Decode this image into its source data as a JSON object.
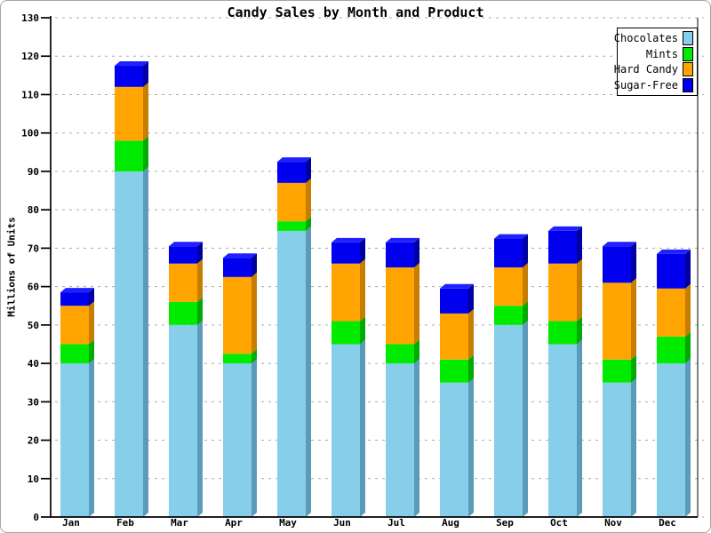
{
  "palette": {
    "background": "#FFFFFF",
    "axis": "#000000",
    "grid": "#AAAAAA",
    "outer_border": "#A5A5A5",
    "legend_border": "#000000",
    "text": "#000000"
  },
  "chart_data": {
    "type": "bar",
    "stacked": true,
    "style": "3d",
    "title": "Candy Sales by Month and Product",
    "xlabel": "",
    "ylabel": "Millions of Units",
    "ylim": [
      0,
      130
    ],
    "ytick_step": 10,
    "grid": "horizontal-dashed",
    "legend_position": "top-right",
    "categories": [
      "Jan",
      "Feb",
      "Mar",
      "Apr",
      "May",
      "Jun",
      "Jul",
      "Aug",
      "Sep",
      "Oct",
      "Nov",
      "Dec"
    ],
    "series": [
      {
        "name": "Chocolates",
        "values": [
          40,
          90,
          50,
          40,
          74.5,
          45,
          40,
          35,
          50,
          45,
          35,
          40
        ],
        "colors": {
          "front": "#87CEEB",
          "side": "#5B9BB8",
          "top": "#76BEDD"
        }
      },
      {
        "name": "Mints",
        "values": [
          5,
          8,
          6,
          2.5,
          2.5,
          6,
          5,
          6,
          5,
          6,
          6,
          7
        ],
        "colors": {
          "front": "#00EB00",
          "side": "#00AA00",
          "top": "#00FF00"
        }
      },
      {
        "name": "Hard Candy",
        "values": [
          10,
          14,
          10,
          20,
          10,
          15,
          20,
          12,
          10,
          15,
          20,
          12.5
        ],
        "colors": {
          "front": "#FFA400",
          "side": "#C67E00",
          "top": "#FFB52E"
        }
      },
      {
        "name": "Sugar-Free",
        "values": [
          3.5,
          5.5,
          4.5,
          5,
          5.5,
          5.5,
          6.5,
          6.5,
          7.5,
          8.5,
          9.5,
          9
        ],
        "colors": {
          "front": "#0000EE",
          "side": "#0000A0",
          "top": "#2020FF"
        }
      }
    ]
  }
}
